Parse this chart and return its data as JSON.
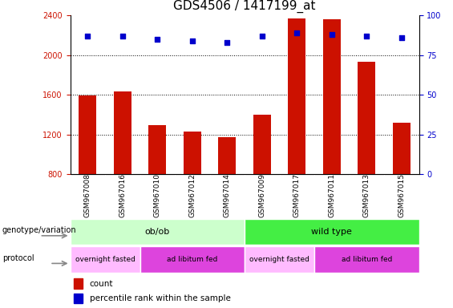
{
  "title": "GDS4506 / 1417199_at",
  "samples": [
    "GSM967008",
    "GSM967016",
    "GSM967010",
    "GSM967012",
    "GSM967014",
    "GSM967009",
    "GSM967017",
    "GSM967011",
    "GSM967013",
    "GSM967015"
  ],
  "counts": [
    1590,
    1630,
    1290,
    1230,
    1170,
    1400,
    2370,
    2360,
    1930,
    1320
  ],
  "percentile_ranks": [
    87,
    87,
    85,
    84,
    83,
    87,
    89,
    88,
    87,
    86
  ],
  "ylim_left": [
    800,
    2400
  ],
  "ylim_right": [
    0,
    100
  ],
  "yticks_left": [
    800,
    1200,
    1600,
    2000,
    2400
  ],
  "yticks_right": [
    0,
    25,
    50,
    75,
    100
  ],
  "bar_color": "#cc1100",
  "dot_color": "#0000cc",
  "bar_width": 0.5,
  "genotype_groups": [
    {
      "label": "ob/ob",
      "start": 0,
      "end": 5,
      "color": "#ccffcc"
    },
    {
      "label": "wild type",
      "start": 5,
      "end": 10,
      "color": "#44ee44"
    }
  ],
  "protocol_groups": [
    {
      "label": "overnight fasted",
      "start": 0,
      "end": 2,
      "color": "#ffbbff"
    },
    {
      "label": "ad libitum fed",
      "start": 2,
      "end": 5,
      "color": "#dd44dd"
    },
    {
      "label": "overnight fasted",
      "start": 5,
      "end": 7,
      "color": "#ffbbff"
    },
    {
      "label": "ad libitum fed",
      "start": 7,
      "end": 10,
      "color": "#dd44dd"
    }
  ],
  "legend_count_color": "#cc1100",
  "legend_dot_color": "#0000cc",
  "left_label_color": "#cc1100",
  "right_label_color": "#0000cc",
  "grid_color": "#000000",
  "background_color": "#ffffff",
  "sample_box_color": "#cccccc",
  "title_fontsize": 11,
  "tick_fontsize": 7,
  "label_fontsize": 8,
  "annotation_fontsize": 8
}
